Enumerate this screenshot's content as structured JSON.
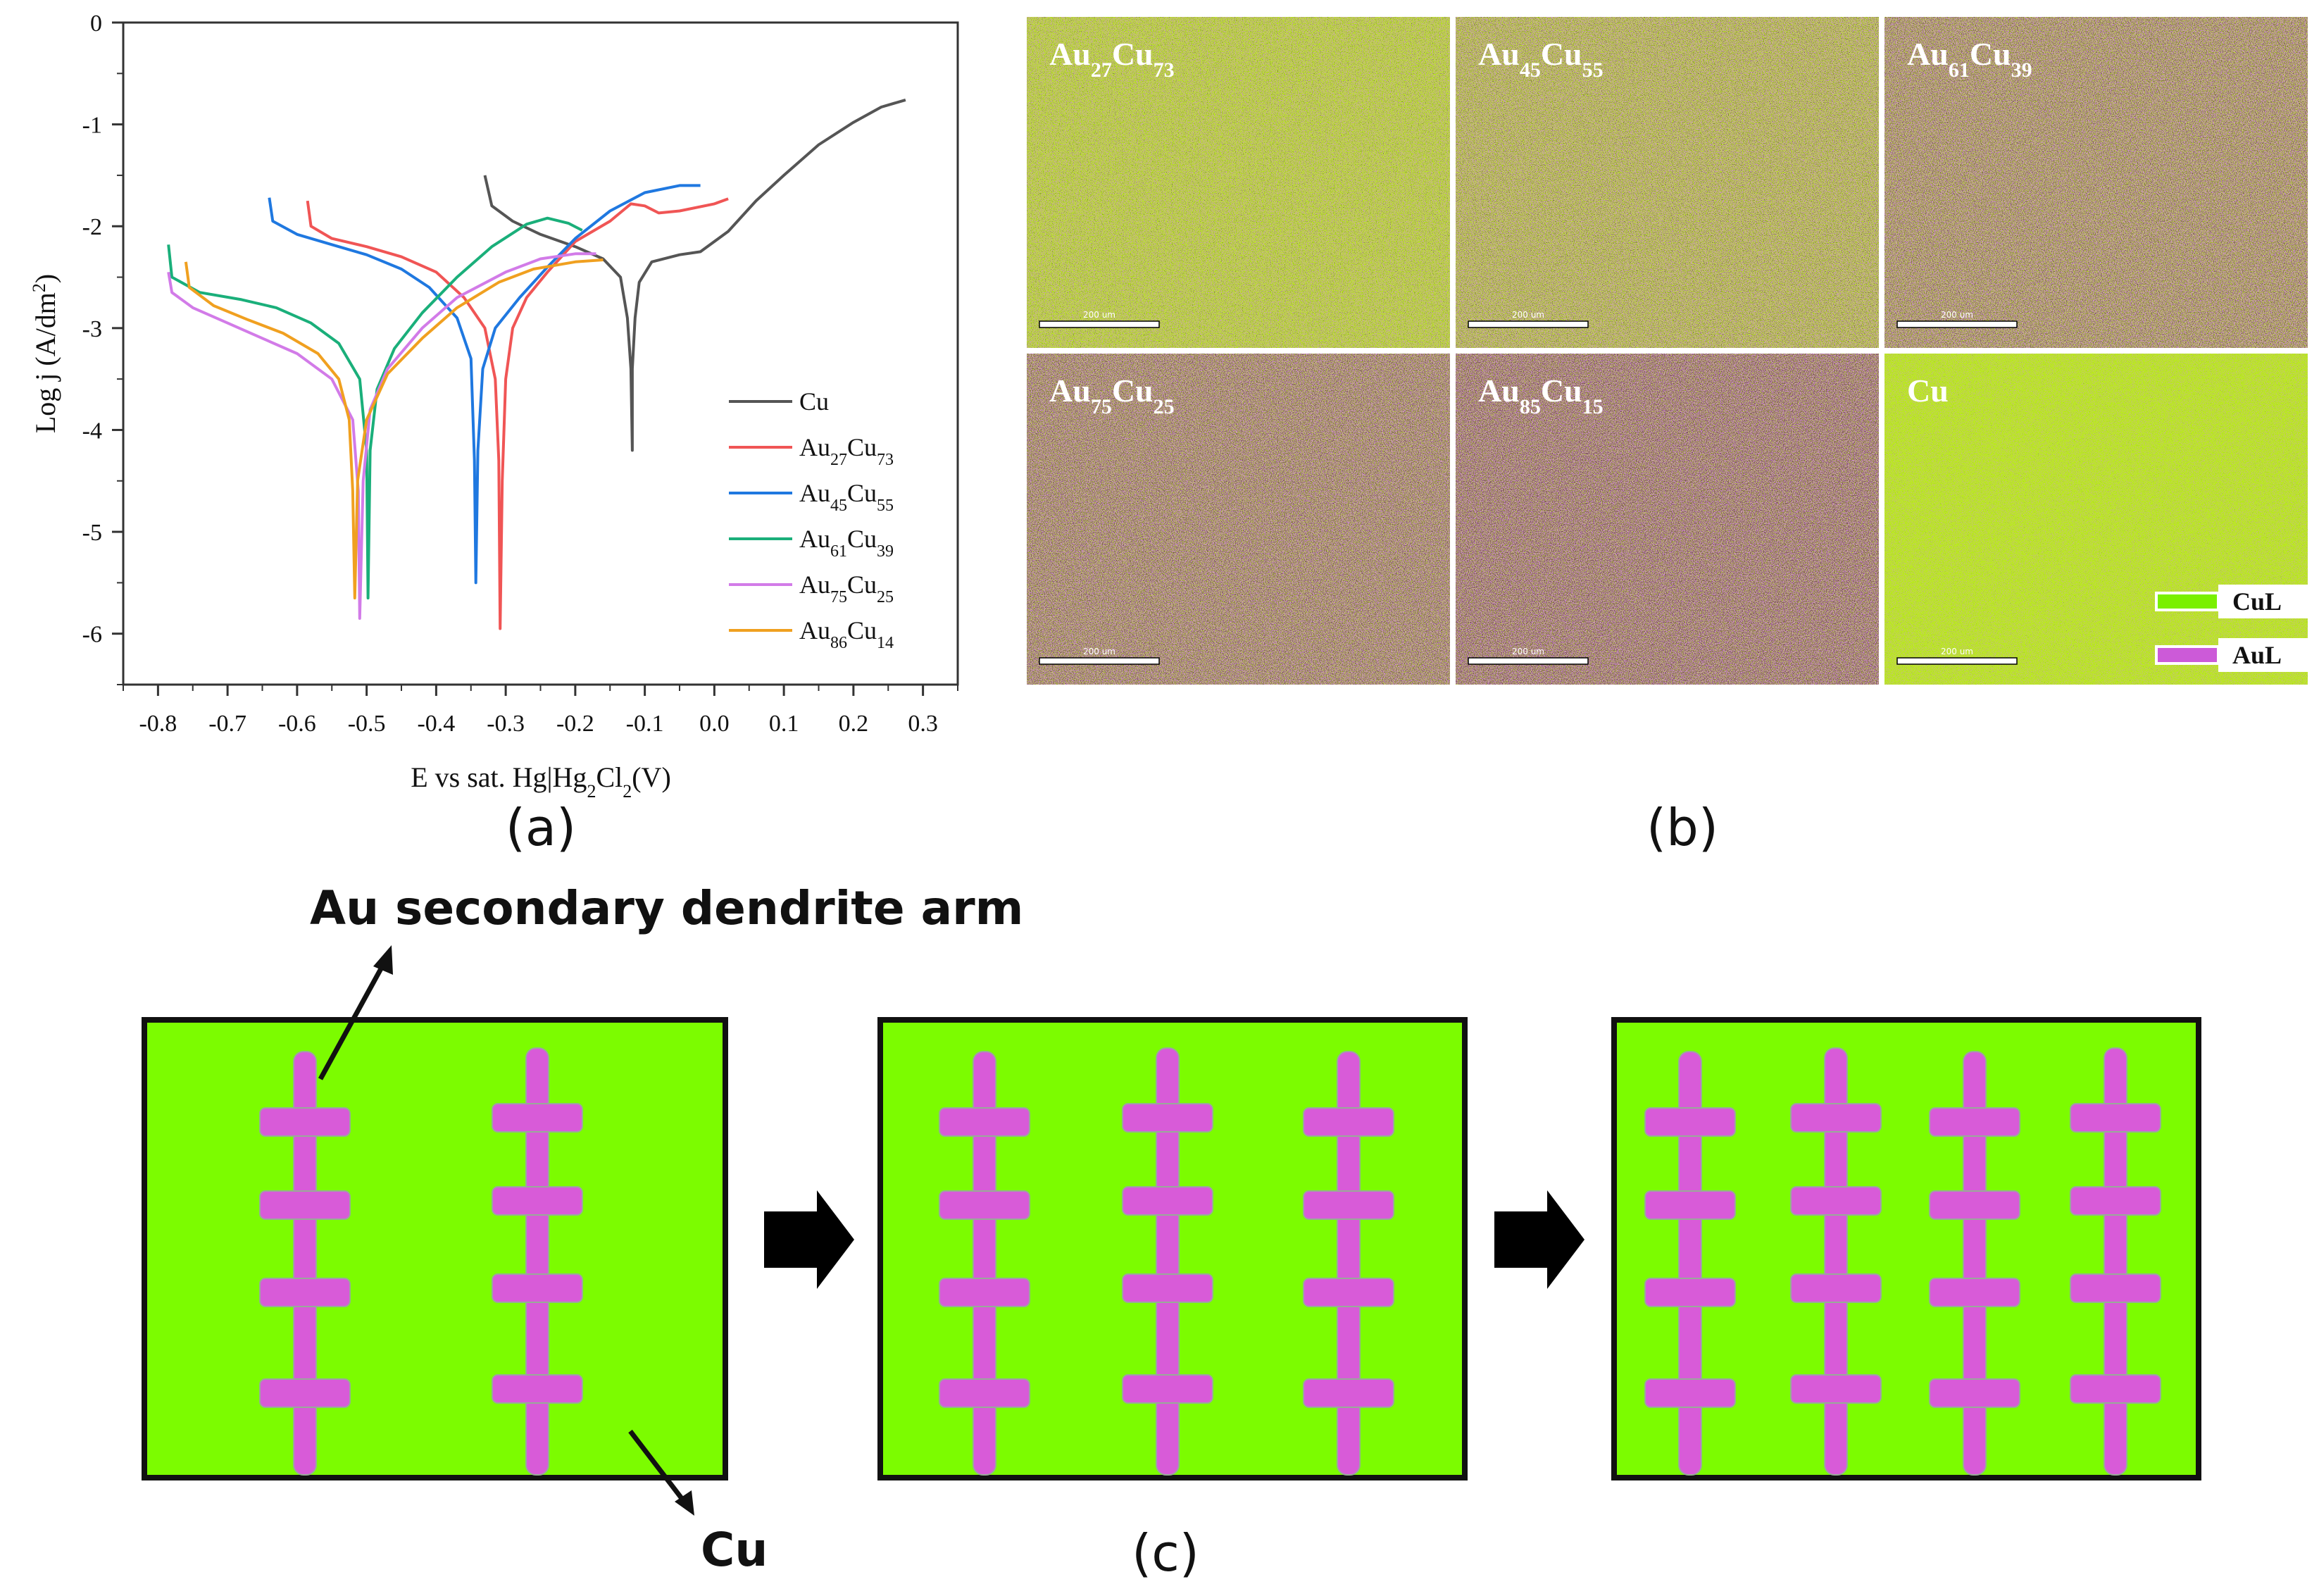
{
  "chart_data": {
    "type": "line",
    "xlabel": "E vs sat. Hg|Hg2Cl2(V)",
    "ylabel": "Log j (A/dm²)",
    "xlim": [
      -0.85,
      0.35
    ],
    "ylim": [
      -6.5,
      0
    ],
    "xticks": [
      "-0.8",
      "-0.7",
      "-0.6",
      "-0.5",
      "-0.4",
      "-0.3",
      "-0.2",
      "-0.1",
      "0.0",
      "0.1",
      "0.2",
      "0.3"
    ],
    "yticks": [
      "0",
      "-1",
      "-2",
      "-3",
      "-4",
      "-5",
      "-6"
    ],
    "legend_position": "lower-right",
    "grid": false,
    "series": [
      {
        "name": "Cu",
        "base": "Cu",
        "sub1": "",
        "rest": "",
        "sub2": "",
        "color": "#555555",
        "points": [
          [
            -0.33,
            -1.5
          ],
          [
            -0.32,
            -1.8
          ],
          [
            -0.29,
            -1.95
          ],
          [
            -0.25,
            -2.08
          ],
          [
            -0.2,
            -2.2
          ],
          [
            -0.16,
            -2.32
          ],
          [
            -0.135,
            -2.5
          ],
          [
            -0.125,
            -2.9
          ],
          [
            -0.12,
            -3.4
          ],
          [
            -0.118,
            -4.2
          ],
          [
            -0.118,
            -3.4
          ],
          [
            -0.114,
            -2.9
          ],
          [
            -0.108,
            -2.55
          ],
          [
            -0.09,
            -2.35
          ],
          [
            -0.05,
            -2.28
          ],
          [
            -0.02,
            -2.25
          ],
          [
            0.02,
            -2.05
          ],
          [
            0.06,
            -1.75
          ],
          [
            0.1,
            -1.5
          ],
          [
            0.15,
            -1.2
          ],
          [
            0.2,
            -0.98
          ],
          [
            0.24,
            -0.83
          ],
          [
            0.275,
            -0.76
          ]
        ]
      },
      {
        "name": "Au27Cu73",
        "base": "Au",
        "sub1": "27",
        "rest": "Cu",
        "sub2": "73",
        "color": "#f05555",
        "points": [
          [
            -0.585,
            -1.75
          ],
          [
            -0.58,
            -2.0
          ],
          [
            -0.55,
            -2.12
          ],
          [
            -0.5,
            -2.2
          ],
          [
            -0.45,
            -2.3
          ],
          [
            -0.4,
            -2.45
          ],
          [
            -0.36,
            -2.7
          ],
          [
            -0.33,
            -3.0
          ],
          [
            -0.315,
            -3.5
          ],
          [
            -0.31,
            -4.3
          ],
          [
            -0.308,
            -5.95
          ],
          [
            -0.305,
            -4.5
          ],
          [
            -0.3,
            -3.5
          ],
          [
            -0.29,
            -3.0
          ],
          [
            -0.27,
            -2.7
          ],
          [
            -0.24,
            -2.45
          ],
          [
            -0.2,
            -2.15
          ],
          [
            -0.15,
            -1.95
          ],
          [
            -0.12,
            -1.78
          ],
          [
            -0.1,
            -1.8
          ],
          [
            -0.08,
            -1.87
          ],
          [
            -0.05,
            -1.85
          ],
          [
            0.0,
            -1.78
          ],
          [
            0.02,
            -1.73
          ]
        ]
      },
      {
        "name": "Au45Cu55",
        "base": "Au",
        "sub1": "45",
        "rest": "Cu",
        "sub2": "55",
        "color": "#1f78e0",
        "points": [
          [
            -0.64,
            -1.72
          ],
          [
            -0.635,
            -1.95
          ],
          [
            -0.6,
            -2.08
          ],
          [
            -0.55,
            -2.18
          ],
          [
            -0.5,
            -2.28
          ],
          [
            -0.45,
            -2.42
          ],
          [
            -0.41,
            -2.6
          ],
          [
            -0.37,
            -2.9
          ],
          [
            -0.35,
            -3.3
          ],
          [
            -0.345,
            -4.3
          ],
          [
            -0.343,
            -5.5
          ],
          [
            -0.34,
            -4.2
          ],
          [
            -0.333,
            -3.4
          ],
          [
            -0.315,
            -3.0
          ],
          [
            -0.28,
            -2.7
          ],
          [
            -0.24,
            -2.4
          ],
          [
            -0.2,
            -2.12
          ],
          [
            -0.15,
            -1.85
          ],
          [
            -0.1,
            -1.67
          ],
          [
            -0.05,
            -1.6
          ],
          [
            -0.02,
            -1.6
          ]
        ]
      },
      {
        "name": "Au61Cu39",
        "base": "Au",
        "sub1": "61",
        "rest": "Cu",
        "sub2": "39",
        "color": "#1aaf7a",
        "points": [
          [
            -0.785,
            -2.18
          ],
          [
            -0.78,
            -2.5
          ],
          [
            -0.74,
            -2.65
          ],
          [
            -0.68,
            -2.72
          ],
          [
            -0.63,
            -2.8
          ],
          [
            -0.58,
            -2.95
          ],
          [
            -0.54,
            -3.15
          ],
          [
            -0.51,
            -3.5
          ],
          [
            -0.5,
            -4.2
          ],
          [
            -0.498,
            -5.65
          ],
          [
            -0.495,
            -4.2
          ],
          [
            -0.485,
            -3.6
          ],
          [
            -0.46,
            -3.2
          ],
          [
            -0.42,
            -2.85
          ],
          [
            -0.37,
            -2.5
          ],
          [
            -0.32,
            -2.2
          ],
          [
            -0.27,
            -1.98
          ],
          [
            -0.24,
            -1.92
          ],
          [
            -0.21,
            -1.97
          ],
          [
            -0.19,
            -2.04
          ]
        ]
      },
      {
        "name": "Au75Cu25",
        "base": "Au",
        "sub1": "75",
        "rest": "Cu",
        "sub2": "25",
        "color": "#d27be8",
        "points": [
          [
            -0.785,
            -2.45
          ],
          [
            -0.78,
            -2.65
          ],
          [
            -0.75,
            -2.8
          ],
          [
            -0.7,
            -2.95
          ],
          [
            -0.65,
            -3.1
          ],
          [
            -0.6,
            -3.25
          ],
          [
            -0.55,
            -3.5
          ],
          [
            -0.52,
            -3.9
          ],
          [
            -0.512,
            -4.6
          ],
          [
            -0.51,
            -5.85
          ],
          [
            -0.505,
            -4.5
          ],
          [
            -0.495,
            -3.8
          ],
          [
            -0.47,
            -3.4
          ],
          [
            -0.42,
            -3.0
          ],
          [
            -0.37,
            -2.7
          ],
          [
            -0.3,
            -2.45
          ],
          [
            -0.25,
            -2.32
          ],
          [
            -0.2,
            -2.27
          ],
          [
            -0.17,
            -2.27
          ]
        ]
      },
      {
        "name": "Au86Cu14",
        "base": "Au",
        "sub1": "86",
        "rest": "Cu",
        "sub2": "14",
        "color": "#f0a020",
        "points": [
          [
            -0.76,
            -2.35
          ],
          [
            -0.755,
            -2.6
          ],
          [
            -0.72,
            -2.78
          ],
          [
            -0.67,
            -2.92
          ],
          [
            -0.62,
            -3.05
          ],
          [
            -0.57,
            -3.25
          ],
          [
            -0.54,
            -3.5
          ],
          [
            -0.525,
            -3.9
          ],
          [
            -0.52,
            -4.6
          ],
          [
            -0.517,
            -5.65
          ],
          [
            -0.513,
            -4.5
          ],
          [
            -0.5,
            -3.9
          ],
          [
            -0.47,
            -3.45
          ],
          [
            -0.42,
            -3.1
          ],
          [
            -0.37,
            -2.8
          ],
          [
            -0.31,
            -2.55
          ],
          [
            -0.26,
            -2.42
          ],
          [
            -0.2,
            -2.35
          ],
          [
            -0.16,
            -2.33
          ]
        ]
      }
    ]
  },
  "panel_labels": {
    "a": "(a)",
    "b": "(b)",
    "c": "(c)"
  },
  "maps": {
    "scale_text": "200 um",
    "tiles": [
      {
        "base": "Au",
        "sub1": "27",
        "rest": "Cu",
        "sub2": "73",
        "green_fraction": 0.58
      },
      {
        "base": "Au",
        "sub1": "45",
        "rest": "Cu",
        "sub2": "55",
        "green_fraction": 0.44
      },
      {
        "base": "Au",
        "sub1": "61",
        "rest": "Cu",
        "sub2": "39",
        "green_fraction": 0.3
      },
      {
        "base": "Au",
        "sub1": "75",
        "rest": "Cu",
        "sub2": "25",
        "green_fraction": 0.25
      },
      {
        "base": "Au",
        "sub1": "85",
        "rest": "Cu",
        "sub2": "15",
        "green_fraction": 0.2
      },
      {
        "base": "Cu",
        "sub1": "",
        "rest": "",
        "sub2": "",
        "green_fraction": 0.85
      }
    ],
    "legend": [
      {
        "label": "CuL",
        "color": "#7af000"
      },
      {
        "label": "AuL",
        "color": "#cc5ad8"
      }
    ]
  },
  "schematic": {
    "au_label": "Au secondary dendrite arm",
    "cu_label": "Cu",
    "matrix_color": "#7cfc00",
    "dendrite_color": "#d85bd8",
    "dendrite_counts": [
      2,
      3,
      4
    ]
  }
}
